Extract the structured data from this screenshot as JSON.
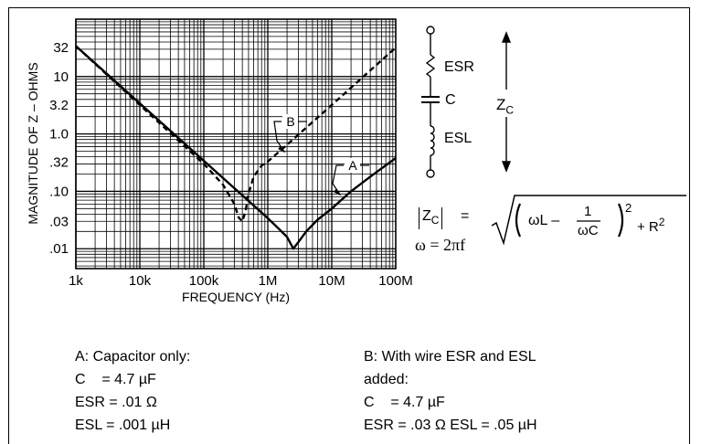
{
  "chart_data": {
    "type": "line",
    "xlabel": "FREQUENCY (Hz)",
    "ylabel": "MAGNITUDE OF Z – OHMS",
    "x_scale": "log",
    "y_scale": "log",
    "xlim": [
      1000,
      100000000
    ],
    "ylim": [
      0.0045,
      100
    ],
    "grid": true,
    "x_ticks": [
      {
        "value": 1000,
        "label": "1k"
      },
      {
        "value": 10000,
        "label": "10k"
      },
      {
        "value": 100000,
        "label": "100k"
      },
      {
        "value": 1000000,
        "label": "1M"
      },
      {
        "value": 10000000,
        "label": "10M"
      },
      {
        "value": 100000000,
        "label": "100M"
      }
    ],
    "y_ticks": [
      {
        "value": 32,
        "label": "32"
      },
      {
        "value": 10,
        "label": "10"
      },
      {
        "value": 3.2,
        "label": "3.2"
      },
      {
        "value": 1.0,
        "label": "1.0"
      },
      {
        "value": 0.32,
        "label": ".32"
      },
      {
        "value": 0.1,
        "label": ".10"
      },
      {
        "value": 0.03,
        "label": ".03"
      },
      {
        "value": 0.01,
        "label": ".01"
      }
    ],
    "series": [
      {
        "name": "A",
        "style": "solid",
        "x": [
          1000,
          10000,
          100000,
          1000000,
          1500000,
          2000000,
          2500000,
          3000000,
          4000000,
          6000000,
          10000000,
          20000000,
          40000000,
          100000000
        ],
        "y": [
          34,
          3.4,
          0.34,
          0.034,
          0.022,
          0.016,
          0.01,
          0.013,
          0.02,
          0.032,
          0.05,
          0.1,
          0.18,
          0.38
        ]
      },
      {
        "name": "B",
        "style": "dashed",
        "x": [
          1000,
          10000,
          100000,
          200000,
          300000,
          350000,
          400000,
          450000,
          500000,
          600000,
          800000,
          1000000,
          2000000,
          10000000,
          100000000
        ],
        "y": [
          34,
          3.2,
          0.3,
          0.13,
          0.06,
          0.035,
          0.03,
          0.045,
          0.09,
          0.18,
          0.28,
          0.33,
          0.65,
          3.2,
          32
        ]
      }
    ],
    "annotations": [
      {
        "label": "A",
        "series": "A"
      },
      {
        "label": "B",
        "series": "B"
      }
    ]
  },
  "circuit": {
    "esr_label": "ESR",
    "c_label": "C",
    "esl_label": "ESL",
    "zc_label": "Z",
    "zc_sub": "C"
  },
  "formula": {
    "z": "Z",
    "z_sub": "C",
    "equals": "=",
    "omega_l": "ωL –",
    "frac_num": "1",
    "frac_den": "ωC",
    "exp2": "2",
    "plus_r": "+ R",
    "r_exp": "2",
    "omega_def": "ω = 2πf"
  },
  "captions": {
    "a": [
      "A: Capacitor only:",
      "C    = 4.7 µF",
      "ESR = .01 Ω",
      "ESL = .001 µH"
    ],
    "b": [
      "B: With wire ESR and ESL",
      "added:",
      "C    = 4.7 µF",
      "ESR = .03 Ω ESL = .05 µH"
    ]
  }
}
